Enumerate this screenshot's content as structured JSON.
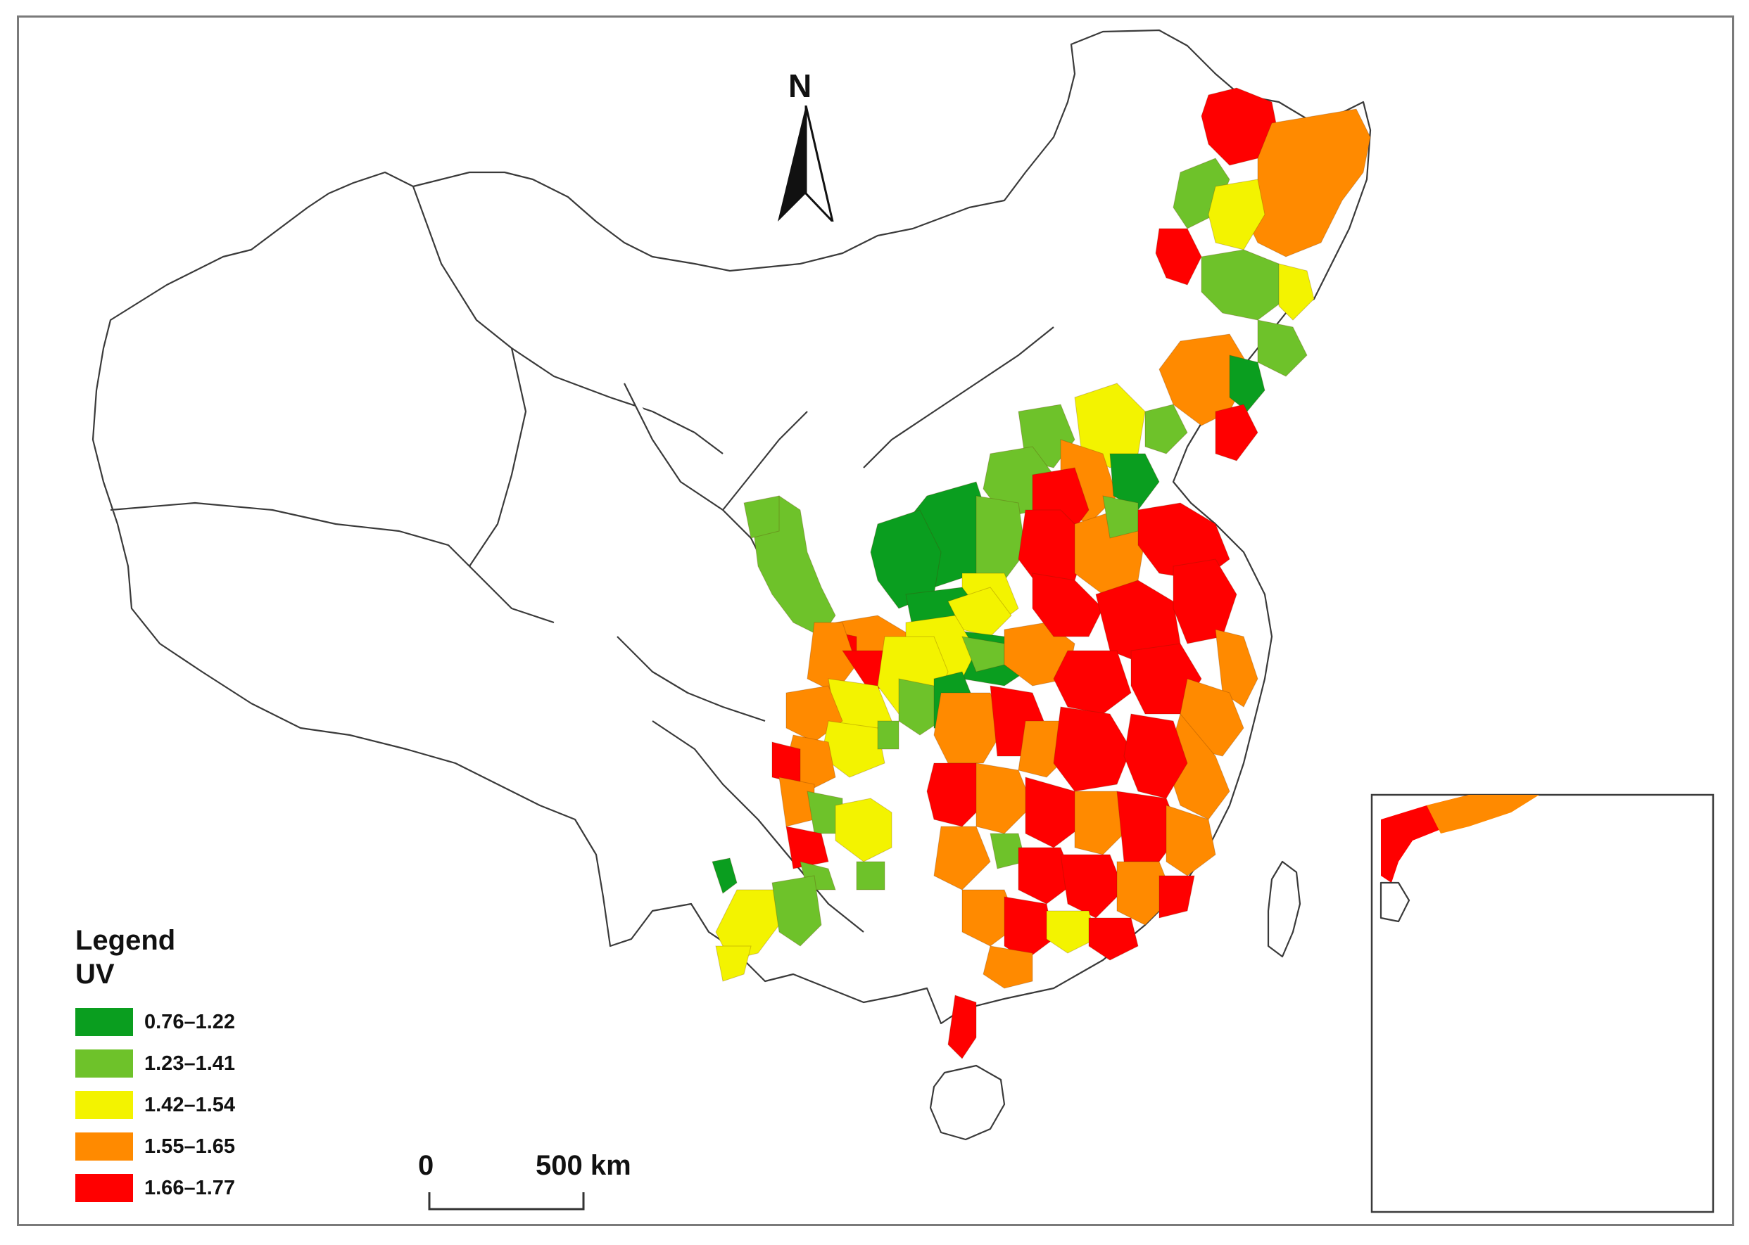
{
  "north_arrow": {
    "label": "N",
    "icon": "north-arrow-icon"
  },
  "legend": {
    "title": "Legend",
    "variable": "UV",
    "classes": [
      {
        "label": "0.76–1.22",
        "color": "#0a9e1f"
      },
      {
        "label": "1.23–1.41",
        "color": "#6ec22a"
      },
      {
        "label": "1.42–1.54",
        "color": "#f3f300"
      },
      {
        "label": "1.55–1.65",
        "color": "#ff8a00"
      },
      {
        "label": "1.66–1.77",
        "color": "#ff0000"
      }
    ]
  },
  "scale_bar": {
    "start_label": "0",
    "end_label": "500 km"
  },
  "inset": {
    "icon": "south-china-sea-inset"
  }
}
